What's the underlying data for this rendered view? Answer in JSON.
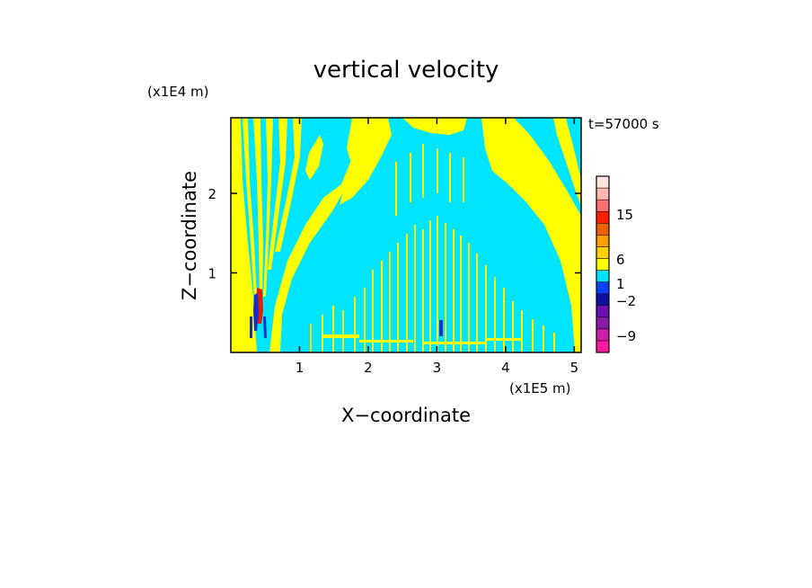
{
  "chart_data": {
    "type": "heatmap",
    "title": "vertical velocity",
    "xlabel": "X−coordinate",
    "ylabel": "Z−coordinate",
    "x_unit": "(x1E5 m)",
    "z_unit": "(x1E4 m)",
    "time_label": "t=57000 s",
    "x_ticks": [
      {
        "value": 1,
        "label": "1"
      },
      {
        "value": 2,
        "label": "2"
      },
      {
        "value": 3,
        "label": "3"
      },
      {
        "value": 4,
        "label": "4"
      },
      {
        "value": 5,
        "label": "5"
      }
    ],
    "z_ticks": [
      {
        "value": 1,
        "label": "1"
      },
      {
        "value": 2,
        "label": "2"
      }
    ],
    "xlim": [
      0,
      5.1
    ],
    "zlim": [
      0,
      2.95
    ],
    "colorbar": {
      "levels": [
        {
          "color": "#ff1aa0"
        },
        {
          "color": "#cc1eaa"
        },
        {
          "color": "#8a1aa8"
        },
        {
          "color": "#6a10b0"
        },
        {
          "color": "#1010a0"
        },
        {
          "color": "#0c40ff"
        },
        {
          "color": "#00e0ff"
        },
        {
          "color": "#ffff00"
        },
        {
          "color": "#ffd000"
        },
        {
          "color": "#ffa000"
        },
        {
          "color": "#f06000"
        },
        {
          "color": "#ff2000"
        },
        {
          "color": "#ff7070"
        },
        {
          "color": "#ffb8b0"
        },
        {
          "color": "#ffe4dc"
        }
      ],
      "labels": [
        {
          "text": "15",
          "value": 15
        },
        {
          "text": "6",
          "value": 6
        },
        {
          "text": "1",
          "value": 1
        },
        {
          "text": "−2",
          "value": -2
        },
        {
          "text": "−9",
          "value": -9
        }
      ]
    },
    "field_colors": {
      "negative": "#00e5ff",
      "positive": "#ffff00",
      "strong_negative": "#1030d0",
      "strong_positive": "#e02000"
    },
    "features": [
      {
        "name": "left-plume",
        "x_center": 0.42,
        "z_top": 0.85
      },
      {
        "name": "center-spot",
        "x_center": 3.07,
        "z_top": 0.35
      }
    ]
  }
}
